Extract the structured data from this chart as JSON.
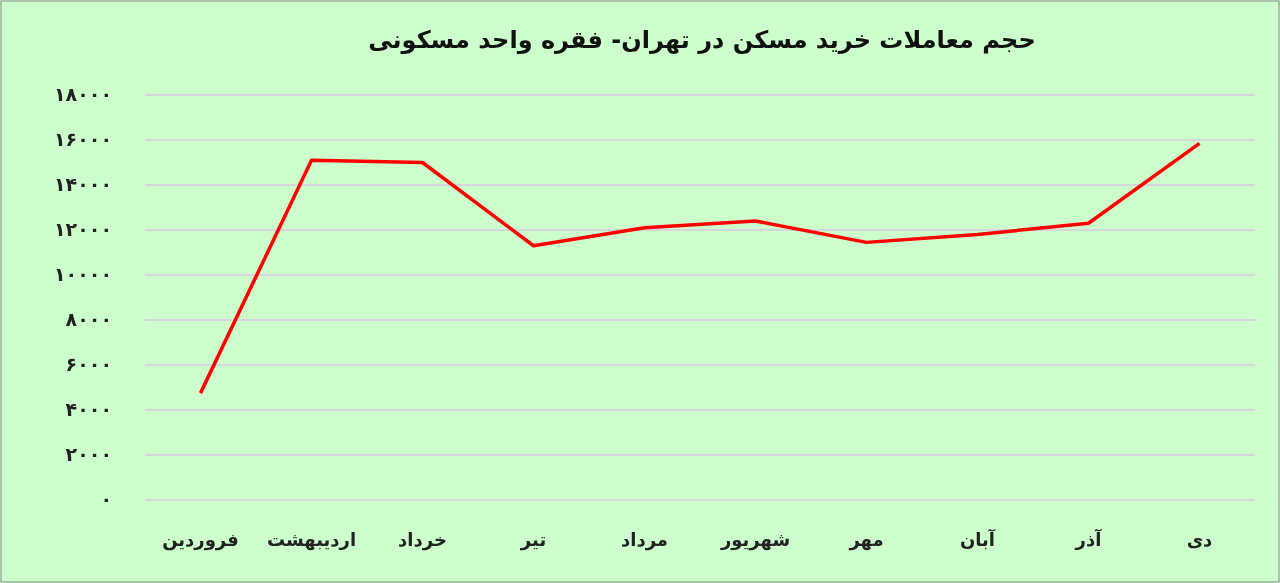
{
  "chart_data": {
    "type": "line",
    "title": "حجم معاملات خرید مسکن در تهران- فقره واحد مسکونی",
    "categories": [
      "فروردین",
      "اردیبهشت",
      "خرداد",
      "تیر",
      "مرداد",
      "شهریور",
      "مهر",
      "آبان",
      "آذر",
      "دی"
    ],
    "values": [
      4750,
      15100,
      15000,
      11300,
      12100,
      12400,
      11450,
      11800,
      12300,
      15850
    ],
    "color": "#ff0000",
    "ylim": [
      0,
      18000
    ],
    "yticks": [
      {
        "value": 0,
        "label": "۰"
      },
      {
        "value": 2000,
        "label": "۲۰۰۰"
      },
      {
        "value": 4000,
        "label": "۴۰۰۰"
      },
      {
        "value": 6000,
        "label": "۶۰۰۰"
      },
      {
        "value": 8000,
        "label": "۸۰۰۰"
      },
      {
        "value": 10000,
        "label": "۱۰۰۰۰"
      },
      {
        "value": 12000,
        "label": "۱۲۰۰۰"
      },
      {
        "value": 14000,
        "label": "۱۴۰۰۰"
      },
      {
        "value": 16000,
        "label": "۱۶۰۰۰"
      },
      {
        "value": 18000,
        "label": "۱۸۰۰۰"
      }
    ],
    "grid": "y",
    "marker": "none",
    "line_style": "solid"
  }
}
